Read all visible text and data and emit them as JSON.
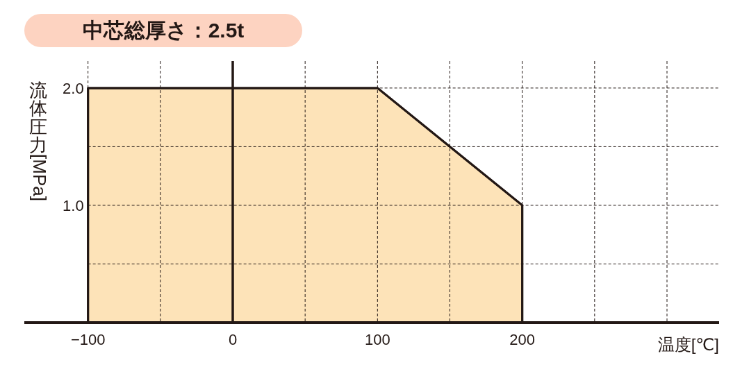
{
  "chart_data": {
    "type": "area",
    "title": "中芯総厚さ：2.5t",
    "xlabel": "温度[℃]",
    "ylabel": "流体圧力[MPa]",
    "x": [
      -100,
      -100,
      100,
      200,
      200
    ],
    "series": [
      {
        "color": "#fde3b8",
        "values": [
          0,
          2.0,
          2.0,
          1.0,
          0
        ]
      }
    ],
    "xlim": [
      -144,
      336
    ],
    "ylim": [
      0,
      2.23
    ],
    "xticks": [
      {
        "value": -100,
        "label": "−100"
      },
      {
        "value": -50,
        "label": null
      },
      0,
      {
        "value": 50,
        "label": null
      },
      100,
      {
        "value": 150,
        "label": null
      },
      200,
      {
        "value": 250,
        "label": null
      },
      {
        "value": 300,
        "label": null
      }
    ],
    "yticks": [
      {
        "value": 0.5,
        "label": null
      },
      {
        "value": 1.0,
        "label": "1.0"
      },
      {
        "value": 1.5,
        "label": null
      },
      {
        "value": 2.0,
        "label": "2.0"
      }
    ],
    "grid": true
  }
}
